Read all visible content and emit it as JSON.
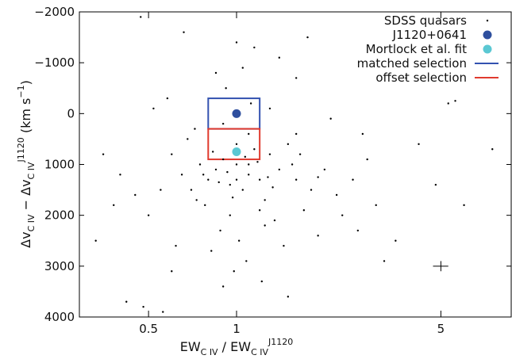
{
  "chart_data": {
    "type": "scatter",
    "xlabel": [
      {
        "text": "EW"
      },
      {
        "text": "C IV",
        "shift": "sub"
      },
      {
        "text": " / EW"
      },
      {
        "text": "C IV",
        "shift": "sub"
      },
      {
        "text": "J1120",
        "shift": "sup"
      }
    ],
    "ylabel": [
      {
        "text": "Δv"
      },
      {
        "text": "C IV",
        "shift": "sub"
      },
      {
        "text": " − Δv"
      },
      {
        "text": "C IV",
        "shift": "sub"
      },
      {
        "text": "J1120",
        "shift": "sup"
      },
      {
        "text": " (km s"
      },
      {
        "text": "−1",
        "shift": "sup"
      },
      {
        "text": ")"
      }
    ],
    "xscale": "log",
    "xlim": [
      0.29,
      8.7
    ],
    "ylim": [
      -2000,
      4000
    ],
    "yinverted": true,
    "xticks": [
      0.5,
      1,
      5
    ],
    "yticks": [
      {
        "value": -2000,
        "label": "−2000"
      },
      {
        "value": -1000,
        "label": "−1000"
      },
      0,
      1000,
      2000,
      3000,
      4000
    ],
    "series": [
      {
        "name": "SDSS quasars",
        "color": "#000000",
        "marker": "dot",
        "x": [
          1.0,
          1.1,
          0.9,
          1.2,
          0.85,
          1.3,
          1.05,
          0.95,
          1.15,
          0.8,
          1.4,
          0.75,
          1.6,
          1.25,
          0.7,
          1.0,
          1.1,
          0.9,
          1.2,
          0.65,
          1.8,
          2.0,
          0.6,
          1.5,
          1.35,
          0.88,
          1.02,
          0.78,
          1.7,
          2.2,
          0.55,
          1.12,
          0.92,
          1.3,
          0.72,
          2.5,
          0.5,
          1.45,
          0.82,
          1.08,
          3.0,
          0.45,
          1.6,
          0.68,
          1.9,
          0.98,
          1.22,
          0.62,
          2.8,
          0.4,
          1.05,
          1.4,
          0.85,
          1.6,
          0.58,
          2.1,
          3.5,
          0.35,
          0.42,
          0.48,
          0.56,
          1.0,
          1.15,
          0.66,
          4.2,
          5.3,
          5.6,
          7.5,
          0.38,
          4.8,
          1.1,
          1.0,
          0.93,
          1.18,
          1.28,
          0.87,
          1.07,
          0.97,
          1.33,
          0.83,
          1.55,
          0.77,
          1.65,
          0.73,
          1.9,
          2.3,
          2.6,
          0.95,
          1.25,
          0.9,
          1.5,
          0.6,
          3.2,
          2.7,
          0.52,
          1.75,
          0.47,
          3.8,
          0.33,
          6.0
        ],
        "y": [
          1000,
          1200,
          900,
          1300,
          1100,
          800,
          1500,
          1400,
          700,
          1300,
          1100,
          1000,
          1300,
          1700,
          1500,
          600,
          400,
          200,
          1900,
          1200,
          1500,
          1100,
          800,
          600,
          2100,
          2300,
          2500,
          1800,
          1900,
          1600,
          1500,
          -200,
          -500,
          -100,
          300,
          1300,
          2000,
          2600,
          2700,
          2900,
          1800,
          1600,
          400,
          500,
          2400,
          3100,
          3300,
          2600,
          900,
          1200,
          -900,
          -1100,
          -800,
          -700,
          -300,
          100,
          2500,
          800,
          3700,
          3800,
          3900,
          -1400,
          -1300,
          -1600,
          600,
          -200,
          -250,
          700,
          1800,
          1400,
          1000,
          1300,
          1150,
          950,
          1250,
          1350,
          850,
          1650,
          1450,
          750,
          1000,
          1200,
          800,
          1700,
          1250,
          2000,
          2300,
          2000,
          2200,
          3400,
          3600,
          3100,
          2900,
          400,
          -100,
          -1500,
          -1900,
          -700,
          2500,
          1800
        ]
      },
      {
        "name": "J1120+0641",
        "color": "#2e4f9e",
        "marker": "circle",
        "x": [
          1
        ],
        "y": [
          0
        ]
      },
      {
        "name": "Mortlock et al. fit",
        "color": "#5bc8d3",
        "marker": "circle",
        "x": [
          1
        ],
        "y": [
          750
        ]
      }
    ],
    "boxes": [
      {
        "name": "matched selection",
        "color": "#3352b0",
        "xlim": [
          0.8,
          1.2
        ],
        "ylim": [
          -300,
          300
        ]
      },
      {
        "name": "offset selection",
        "color": "#e03a2e",
        "xlim": [
          0.8,
          1.2
        ],
        "ylim": [
          300,
          900
        ]
      }
    ],
    "error_bar": {
      "x": 5,
      "y": 3000,
      "xerr": [
        4.7,
        5.3
      ],
      "yerr": 100
    },
    "legend": "top-right"
  }
}
